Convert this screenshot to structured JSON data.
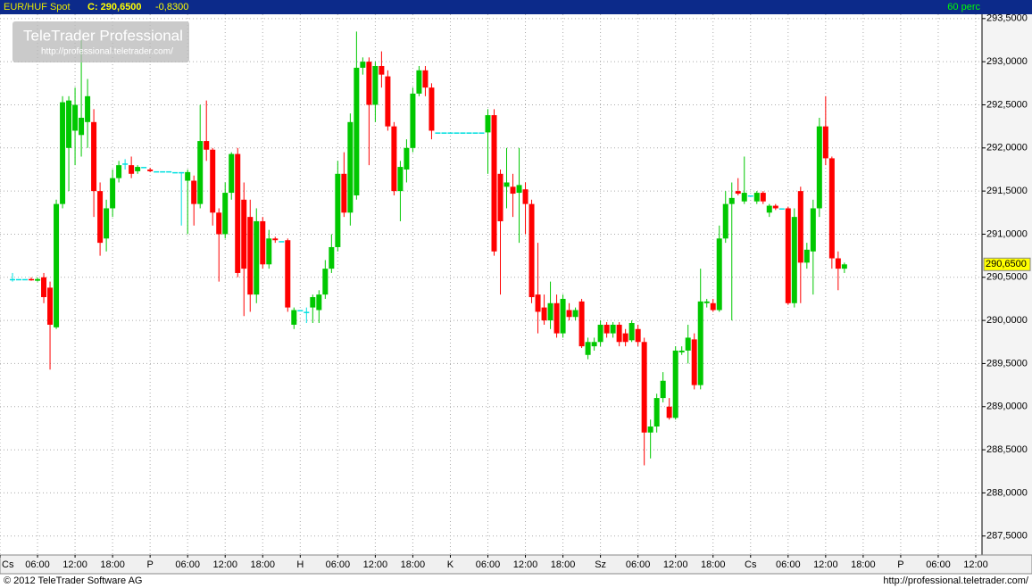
{
  "chart_data": {
    "type": "candlestick",
    "title": "EUR/HUF Spot",
    "close_label": "C: 290,6500",
    "change_label": "-0,8300",
    "interval_label": "60 perc",
    "last_price_label": "290,6500",
    "watermark_title": "TeleTrader Professional",
    "watermark_url": "http://professional.teletrader.com/",
    "footer_left": "© 2012 TeleTrader Software AG",
    "footer_right": "http://professional.teletrader.com/",
    "up_color": "#00c800",
    "down_color": "#ff0000",
    "flat_color": "#00e0e0",
    "grid": true,
    "xlim": [
      0,
      157
    ],
    "ylim": [
      287.28,
      293.55
    ],
    "xticks": [
      {
        "value": 0,
        "label": "Cs"
      },
      {
        "value": 6,
        "label": "06:00"
      },
      {
        "value": 12,
        "label": "12:00"
      },
      {
        "value": 18,
        "label": "18:00"
      },
      {
        "value": 24,
        "label": "P"
      },
      {
        "value": 30,
        "label": "06:00"
      },
      {
        "value": 36,
        "label": "12:00"
      },
      {
        "value": 42,
        "label": "18:00"
      },
      {
        "value": 48,
        "label": "H"
      },
      {
        "value": 54,
        "label": "06:00"
      },
      {
        "value": 60,
        "label": "12:00"
      },
      {
        "value": 66,
        "label": "18:00"
      },
      {
        "value": 72,
        "label": "K"
      },
      {
        "value": 78,
        "label": "06:00"
      },
      {
        "value": 84,
        "label": "12:00"
      },
      {
        "value": 90,
        "label": "18:00"
      },
      {
        "value": 96,
        "label": "Sz"
      },
      {
        "value": 102,
        "label": "06:00"
      },
      {
        "value": 108,
        "label": "12:00"
      },
      {
        "value": 114,
        "label": "18:00"
      },
      {
        "value": 120,
        "label": "Cs"
      },
      {
        "value": 126,
        "label": "06:00"
      },
      {
        "value": 132,
        "label": "12:00"
      },
      {
        "value": 138,
        "label": "18:00"
      },
      {
        "value": 144,
        "label": "P"
      },
      {
        "value": 150,
        "label": "06:00"
      },
      {
        "value": 156,
        "label": "12:00"
      }
    ],
    "yticks": [
      {
        "value": 287.5,
        "label": "287,5000"
      },
      {
        "value": 288,
        "label": "288,0000"
      },
      {
        "value": 288.5,
        "label": "288,5000"
      },
      {
        "value": 289,
        "label": "289,0000"
      },
      {
        "value": 289.5,
        "label": "289,5000"
      },
      {
        "value": 290,
        "label": "290,0000"
      },
      {
        "value": 290.5,
        "label": "290,5000"
      },
      {
        "value": 291,
        "label": "291,0000"
      },
      {
        "value": 291.5,
        "label": "291,5000"
      },
      {
        "value": 292,
        "label": "292,0000"
      },
      {
        "value": 292.5,
        "label": "292,5000"
      },
      {
        "value": 293,
        "label": "293,0000"
      },
      {
        "value": 293.5,
        "label": "293,5000"
      }
    ],
    "x": [
      2,
      3,
      4,
      5,
      6,
      7,
      8,
      9,
      10,
      11,
      12,
      13,
      14,
      15,
      16,
      17,
      18,
      19,
      20,
      21,
      22,
      23,
      24,
      25,
      26,
      27,
      28,
      29,
      30,
      31,
      32,
      33,
      34,
      35,
      36,
      37,
      38,
      39,
      40,
      41,
      42,
      43,
      44,
      45,
      46,
      47,
      48,
      49,
      50,
      51,
      52,
      53,
      54,
      55,
      56,
      57,
      58,
      59,
      60,
      61,
      62,
      63,
      64,
      65,
      66,
      67,
      68,
      69,
      70,
      71,
      72,
      73,
      74,
      75,
      76,
      77,
      78,
      79,
      80,
      81,
      82,
      83,
      84,
      85,
      86,
      87,
      88,
      89,
      90,
      91,
      92,
      93,
      94,
      95,
      96,
      97,
      98,
      99,
      100,
      101,
      102,
      103,
      104,
      105,
      106,
      107,
      108,
      109,
      110,
      111,
      112,
      113,
      114,
      115,
      116,
      117,
      118,
      119,
      120,
      121,
      122,
      123,
      124,
      125,
      126,
      127,
      128,
      129,
      130,
      131,
      132,
      133,
      134,
      135
    ],
    "open": [
      290.48,
      290.48,
      290.48,
      290.48,
      290.46,
      290.5,
      290.38,
      289.92,
      291.35,
      292.0,
      292.2,
      292.15,
      292.3,
      292.3,
      291.5,
      290.95,
      291.3,
      291.65,
      291.82,
      291.8,
      291.73,
      291.78,
      291.75,
      291.73,
      291.73,
      291.73,
      291.72,
      291.72,
      291.62,
      291.62,
      291.35,
      292.08,
      291.98,
      291.25,
      291.0,
      291.48,
      291.93,
      291.4,
      291.2,
      290.3,
      291.15,
      290.65,
      290.95,
      290.92,
      290.93,
      289.95,
      290.12,
      290.1,
      290.15,
      290.12,
      290.3,
      290.6,
      290.85,
      291.7,
      291.25,
      291.45,
      292.93,
      293.0,
      292.5,
      292.95,
      292.83,
      292.25,
      291.5,
      291.75,
      292.0,
      292.63,
      292.9,
      292.7,
      292.18,
      292.18,
      292.18,
      292.18,
      292.18,
      292.18,
      292.18,
      292.18,
      292.18,
      292.38,
      291.7,
      291.55,
      291.55,
      291.48,
      291.52,
      291.35,
      290.3,
      290.15,
      290.0,
      290.2,
      289.85,
      290.12,
      290.04,
      290.22,
      289.6,
      289.7,
      289.75,
      289.95,
      289.85,
      289.95,
      289.85,
      289.77,
      289.9,
      289.75,
      288.7,
      288.77,
      289.1,
      289.0,
      288.87,
      289.63,
      289.65,
      289.78,
      289.25,
      290.2,
      290.2,
      290.12,
      290.95,
      291.35,
      291.5,
      291.38,
      291.45,
      291.38,
      291.48,
      291.25,
      291.33,
      291.3,
      291.3,
      290.2,
      291.5,
      290.67,
      290.8,
      291.3,
      292.25,
      291.88,
      290.72,
      290.6
    ],
    "high": [
      290.55,
      290.48,
      290.48,
      290.5,
      290.5,
      290.55,
      290.45,
      291.4,
      292.6,
      292.6,
      292.7,
      293.25,
      292.8,
      292.45,
      291.6,
      291.4,
      291.75,
      291.85,
      291.87,
      291.9,
      291.8,
      291.78,
      291.77,
      291.73,
      291.73,
      291.73,
      291.72,
      291.72,
      291.75,
      291.68,
      292.5,
      292.55,
      292.0,
      291.3,
      291.6,
      291.95,
      292.0,
      291.6,
      291.4,
      291.3,
      291.2,
      291.05,
      290.97,
      290.92,
      290.95,
      290.15,
      290.12,
      290.15,
      290.3,
      290.35,
      290.7,
      291.0,
      291.85,
      291.95,
      292.4,
      293.35,
      293.05,
      293.05,
      293.0,
      293.12,
      292.9,
      292.3,
      291.85,
      292.1,
      292.7,
      292.95,
      292.95,
      292.75,
      292.18,
      292.18,
      292.18,
      292.18,
      292.18,
      292.18,
      292.18,
      292.18,
      292.45,
      292.45,
      291.75,
      292.0,
      291.7,
      292.0,
      291.6,
      291.4,
      290.9,
      290.3,
      290.45,
      290.3,
      290.3,
      290.2,
      290.15,
      290.25,
      289.8,
      289.8,
      290.0,
      289.98,
      289.98,
      289.98,
      289.9,
      290.0,
      289.95,
      289.8,
      288.85,
      289.15,
      289.4,
      289.1,
      289.7,
      289.7,
      289.95,
      289.85,
      290.6,
      290.25,
      290.25,
      291.1,
      291.5,
      291.6,
      291.65,
      291.9,
      291.45,
      291.5,
      291.5,
      291.35,
      291.35,
      291.3,
      291.32,
      291.3,
      291.55,
      290.9,
      291.4,
      292.35,
      292.6,
      291.9,
      290.8,
      290.67
    ],
    "low": [
      290.45,
      290.48,
      290.48,
      290.46,
      290.45,
      290.2,
      289.43,
      289.9,
      291.3,
      291.5,
      291.8,
      291.9,
      292.0,
      291.2,
      290.75,
      290.8,
      291.2,
      291.6,
      291.75,
      291.65,
      291.7,
      291.78,
      291.72,
      291.73,
      291.73,
      291.73,
      291.72,
      291.1,
      291.0,
      291.1,
      291.3,
      291.85,
      291.1,
      290.45,
      290.95,
      291.4,
      290.5,
      290.05,
      290.1,
      290.2,
      290.6,
      290.6,
      290.9,
      290.92,
      290.1,
      289.9,
      290.12,
      289.97,
      289.97,
      289.97,
      290.25,
      290.55,
      290.8,
      291.2,
      291.1,
      291.4,
      292.85,
      291.8,
      292.3,
      292.7,
      292.2,
      291.45,
      291.15,
      291.6,
      291.95,
      292.6,
      292.6,
      292.1,
      292.18,
      292.18,
      292.18,
      292.18,
      292.18,
      292.18,
      292.18,
      292.18,
      291.7,
      290.75,
      290.3,
      291.3,
      291.2,
      290.9,
      291.0,
      290.2,
      289.85,
      289.95,
      289.9,
      289.8,
      289.8,
      290.0,
      290.0,
      289.68,
      289.55,
      289.65,
      289.7,
      289.8,
      289.8,
      289.7,
      289.7,
      289.75,
      289.7,
      288.32,
      288.4,
      288.7,
      289.05,
      288.85,
      288.85,
      289.6,
      289.5,
      289.2,
      289.2,
      290.15,
      290.1,
      290.1,
      290.9,
      290.0,
      291.45,
      291.35,
      291.45,
      291.35,
      291.35,
      291.2,
      291.28,
      291.3,
      290.18,
      290.15,
      290.2,
      290.6,
      290.3,
      291.2,
      291.8,
      290.6,
      290.35,
      290.55
    ],
    "close": [
      290.48,
      290.48,
      290.48,
      290.47,
      290.48,
      290.27,
      289.95,
      291.35,
      292.53,
      292.55,
      292.5,
      292.35,
      292.6,
      291.5,
      290.9,
      291.3,
      291.65,
      291.8,
      291.82,
      291.7,
      291.78,
      291.78,
      291.73,
      291.73,
      291.73,
      291.73,
      291.72,
      291.72,
      291.72,
      291.35,
      292.08,
      291.98,
      291.25,
      291.0,
      291.48,
      291.93,
      290.55,
      290.6,
      290.3,
      291.15,
      290.65,
      290.95,
      290.93,
      290.92,
      290.15,
      290.12,
      290.12,
      290.1,
      290.27,
      290.3,
      290.6,
      290.85,
      291.7,
      291.25,
      292.3,
      292.93,
      293.0,
      292.5,
      292.95,
      292.85,
      292.25,
      291.5,
      291.78,
      292.0,
      292.63,
      292.9,
      292.7,
      292.2,
      292.18,
      292.18,
      292.18,
      292.18,
      292.18,
      292.18,
      292.18,
      292.18,
      292.38,
      290.8,
      291.15,
      291.6,
      291.47,
      291.57,
      291.35,
      290.27,
      290.1,
      290.0,
      290.2,
      289.85,
      290.25,
      290.04,
      290.12,
      289.7,
      289.75,
      289.75,
      289.95,
      289.85,
      289.95,
      289.75,
      289.75,
      289.97,
      289.75,
      288.7,
      288.77,
      289.1,
      289.3,
      288.87,
      289.65,
      289.65,
      289.8,
      289.25,
      290.22,
      290.22,
      290.12,
      290.95,
      291.35,
      291.42,
      291.47,
      291.48,
      291.45,
      291.48,
      291.38,
      291.33,
      291.3,
      291.3,
      290.2,
      291.2,
      290.67,
      290.82,
      291.3,
      292.25,
      291.88,
      290.72,
      290.6,
      290.65
    ]
  }
}
